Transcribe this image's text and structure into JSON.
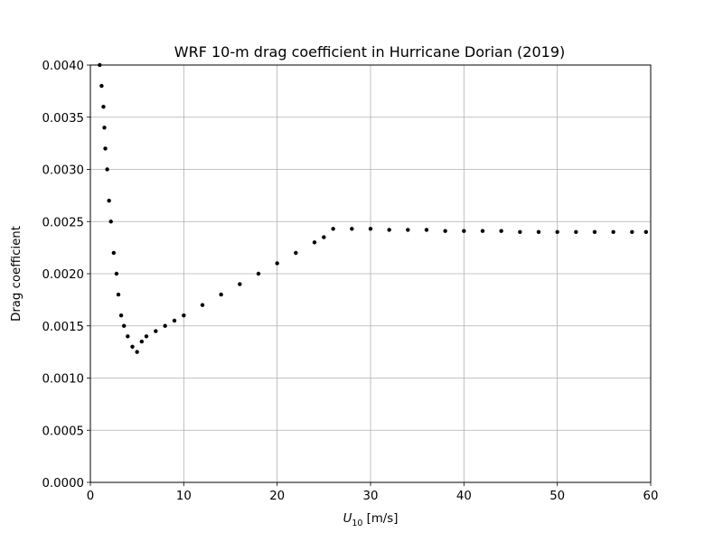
{
  "chart_data": {
    "type": "scatter",
    "title": "WRF 10-m drag coefficient in Hurricane Dorian (2019)",
    "xlabel_main": "U",
    "xlabel_sub": "10",
    "xlabel_unit": " [m/s]",
    "ylabel": "Drag coefficient",
    "xlim": [
      0,
      60
    ],
    "ylim": [
      0,
      0.004
    ],
    "xticks": [
      0,
      10,
      20,
      30,
      40,
      50,
      60
    ],
    "xtick_labels": [
      "0",
      "10",
      "20",
      "30",
      "40",
      "50",
      "60"
    ],
    "yticks": [
      0,
      0.0005,
      0.001,
      0.0015,
      0.002,
      0.0025,
      0.003,
      0.0035,
      0.004
    ],
    "ytick_labels": [
      "0.0000",
      "0.0005",
      "0.0010",
      "0.0015",
      "0.0020",
      "0.0025",
      "0.0030",
      "0.0035",
      "0.0040"
    ],
    "grid": true,
    "marker_color": "#000000",
    "series": [
      {
        "points": [
          [
            1.0,
            0.004
          ],
          [
            1.2,
            0.0038
          ],
          [
            1.4,
            0.0036
          ],
          [
            1.5,
            0.0034
          ],
          [
            1.6,
            0.0032
          ],
          [
            1.8,
            0.003
          ],
          [
            2.0,
            0.0027
          ],
          [
            2.2,
            0.0025
          ],
          [
            2.5,
            0.0022
          ],
          [
            2.8,
            0.002
          ],
          [
            3.0,
            0.0018
          ],
          [
            3.3,
            0.0016
          ],
          [
            3.6,
            0.0015
          ],
          [
            4.0,
            0.0014
          ],
          [
            4.5,
            0.0013
          ],
          [
            5.0,
            0.00125
          ],
          [
            5.5,
            0.00135
          ],
          [
            6.0,
            0.0014
          ],
          [
            7.0,
            0.00145
          ],
          [
            8.0,
            0.0015
          ],
          [
            9.0,
            0.00155
          ],
          [
            10.0,
            0.0016
          ],
          [
            12.0,
            0.0017
          ],
          [
            14.0,
            0.0018
          ],
          [
            16.0,
            0.0019
          ],
          [
            18.0,
            0.002
          ],
          [
            20.0,
            0.0021
          ],
          [
            22.0,
            0.0022
          ],
          [
            24.0,
            0.0023
          ],
          [
            25.0,
            0.00235
          ],
          [
            26.0,
            0.00243
          ],
          [
            28.0,
            0.00243
          ],
          [
            30.0,
            0.00243
          ],
          [
            32.0,
            0.00242
          ],
          [
            34.0,
            0.00242
          ],
          [
            36.0,
            0.00242
          ],
          [
            38.0,
            0.00241
          ],
          [
            40.0,
            0.00241
          ],
          [
            42.0,
            0.00241
          ],
          [
            44.0,
            0.00241
          ],
          [
            46.0,
            0.0024
          ],
          [
            48.0,
            0.0024
          ],
          [
            50.0,
            0.0024
          ],
          [
            52.0,
            0.0024
          ],
          [
            54.0,
            0.0024
          ],
          [
            56.0,
            0.0024
          ],
          [
            58.0,
            0.0024
          ],
          [
            59.5,
            0.0024
          ]
        ]
      }
    ]
  }
}
